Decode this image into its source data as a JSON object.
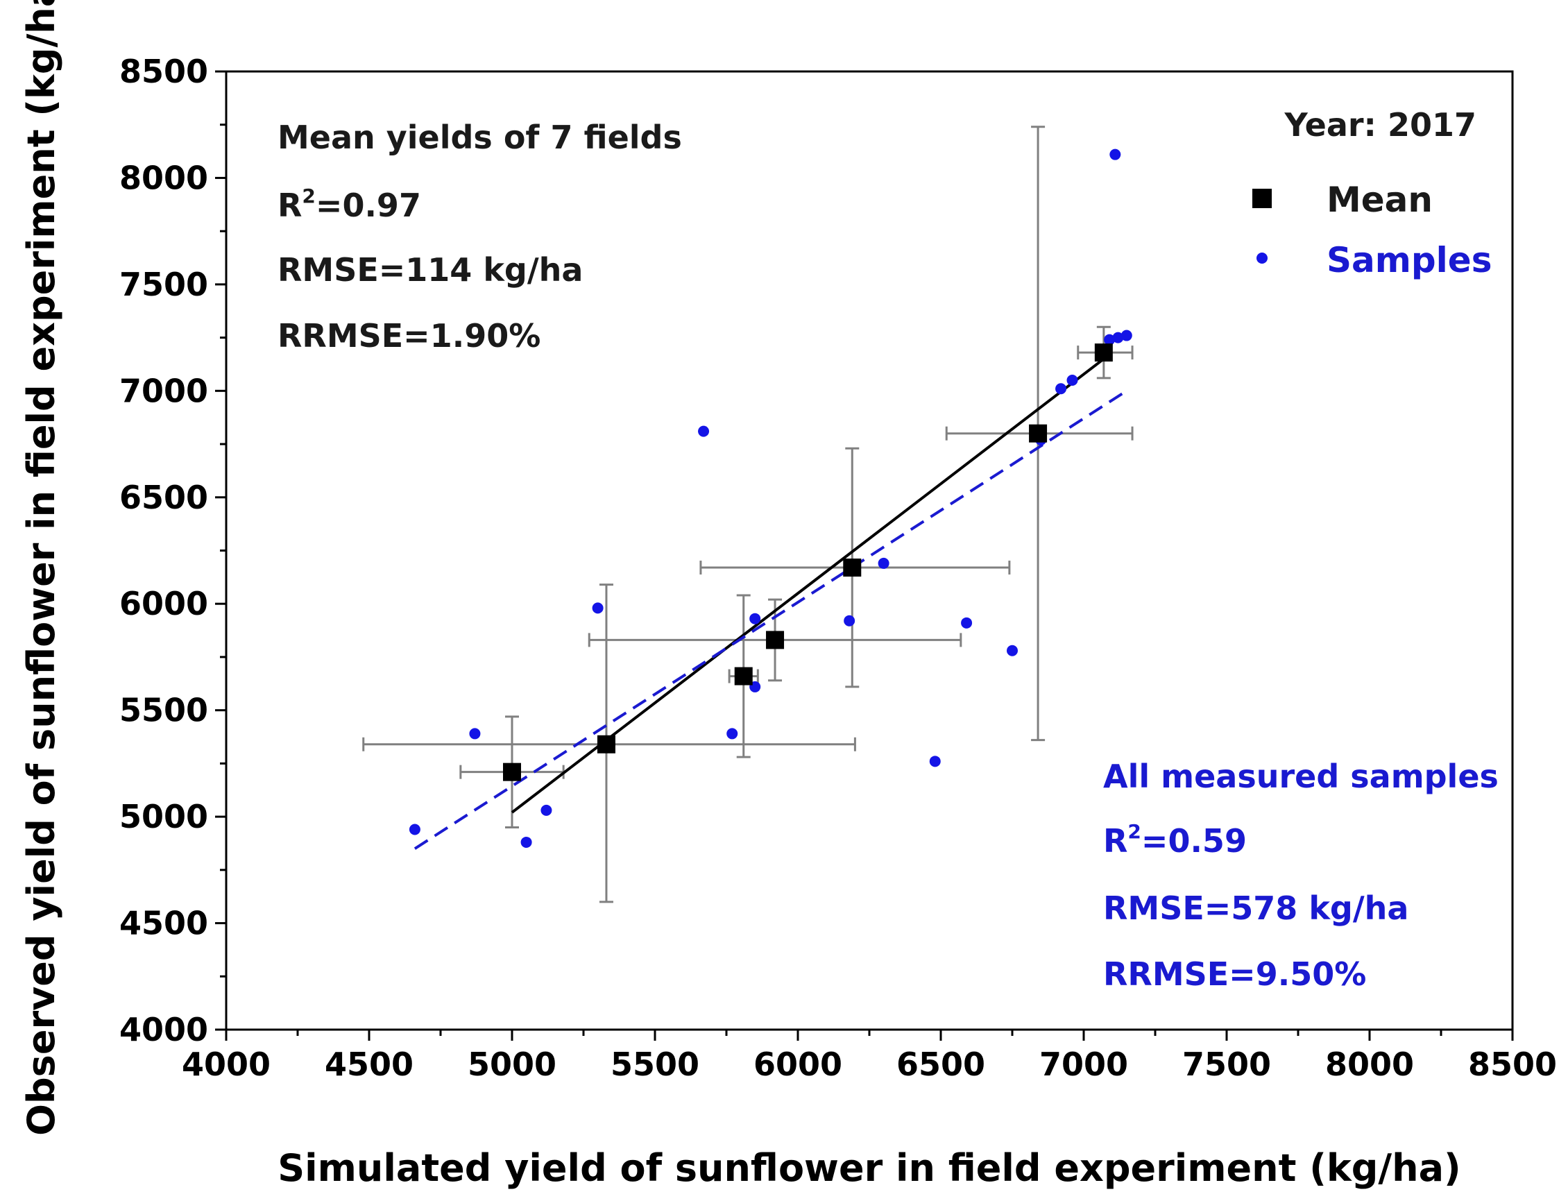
{
  "chart_data": {
    "type": "scatter",
    "xlabel": "Simulated yield of sunflower in field experiment (kg/ha)",
    "ylabel": "Observed yield of sunflower in field experiment (kg/ha)",
    "xlim": [
      4000,
      8500
    ],
    "ylim": [
      4000,
      8500
    ],
    "xticks": [
      "4000",
      "4500",
      "5000",
      "5500",
      "6000",
      "6500",
      "7000",
      "7500",
      "8000",
      "8500"
    ],
    "yticks": [
      "4000",
      "4500",
      "5000",
      "5500",
      "6000",
      "6500",
      "7000",
      "7500",
      "8000",
      "8500"
    ],
    "year_label": "Year: 2017",
    "legend": {
      "mean": "Mean",
      "samples": "Samples",
      "placement": "top-right"
    },
    "mean_stats": {
      "title": "Mean yields of 7 fields",
      "r2_prefix": "R",
      "r2_sup": "2",
      "r2_value": "=0.97",
      "rmse": "RMSE=114 kg/ha",
      "rrmse": "RRMSE=1.90%"
    },
    "sample_stats": {
      "title": "All measured samples",
      "r2_prefix": "R",
      "r2_sup": "2",
      "r2_value": "=0.59",
      "rmse": "RMSE=578 kg/ha",
      "rrmse": "RRMSE=9.50%"
    },
    "colors": {
      "mean": "#000000",
      "samples": "#1414e6",
      "mean_fit": "#000000",
      "sample_fit": "#1a1ad0",
      "error_bar": "#808080"
    },
    "mean_series": [
      {
        "x": 5000,
        "y": 5210,
        "xerr": [
          4820,
          5180
        ],
        "yerr": [
          4950,
          5470
        ]
      },
      {
        "x": 5330,
        "y": 5340,
        "xerr": [
          4480,
          6200
        ],
        "yerr": [
          4600,
          6090
        ]
      },
      {
        "x": 5810,
        "y": 5660,
        "xerr": [
          5760,
          5860
        ],
        "yerr": [
          5280,
          6040
        ]
      },
      {
        "x": 5920,
        "y": 5830,
        "xerr": [
          5270,
          6570
        ],
        "yerr": [
          5640,
          6020
        ]
      },
      {
        "x": 6190,
        "y": 6170,
        "xerr": [
          5660,
          6740
        ],
        "yerr": [
          5610,
          6730
        ]
      },
      {
        "x": 6840,
        "y": 6800,
        "xerr": [
          6520,
          7170
        ],
        "yerr": [
          5360,
          8240
        ]
      },
      {
        "x": 7070,
        "y": 7180,
        "xerr": [
          6980,
          7170
        ],
        "yerr": [
          7060,
          7300
        ]
      }
    ],
    "sample_series": [
      {
        "x": 4660,
        "y": 4940
      },
      {
        "x": 4870,
        "y": 5390
      },
      {
        "x": 5050,
        "y": 4880
      },
      {
        "x": 5120,
        "y": 5030
      },
      {
        "x": 5300,
        "y": 5980
      },
      {
        "x": 5670,
        "y": 6810
      },
      {
        "x": 5770,
        "y": 5390
      },
      {
        "x": 5850,
        "y": 5610
      },
      {
        "x": 5850,
        "y": 5930
      },
      {
        "x": 6180,
        "y": 5920
      },
      {
        "x": 6300,
        "y": 6190
      },
      {
        "x": 6480,
        "y": 5260
      },
      {
        "x": 6590,
        "y": 5910
      },
      {
        "x": 6750,
        "y": 5780
      },
      {
        "x": 6850,
        "y": 6770
      },
      {
        "x": 6920,
        "y": 7010
      },
      {
        "x": 6960,
        "y": 7050
      },
      {
        "x": 7090,
        "y": 7240
      },
      {
        "x": 7120,
        "y": 7250
      },
      {
        "x": 7150,
        "y": 7260
      },
      {
        "x": 7110,
        "y": 8110
      }
    ],
    "mean_fit_line": {
      "x": [
        5000,
        7070
      ],
      "y": [
        5020,
        7150
      ]
    },
    "sample_fit_line": {
      "x": [
        4660,
        7150
      ],
      "y": [
        4850,
        7000
      ]
    }
  }
}
